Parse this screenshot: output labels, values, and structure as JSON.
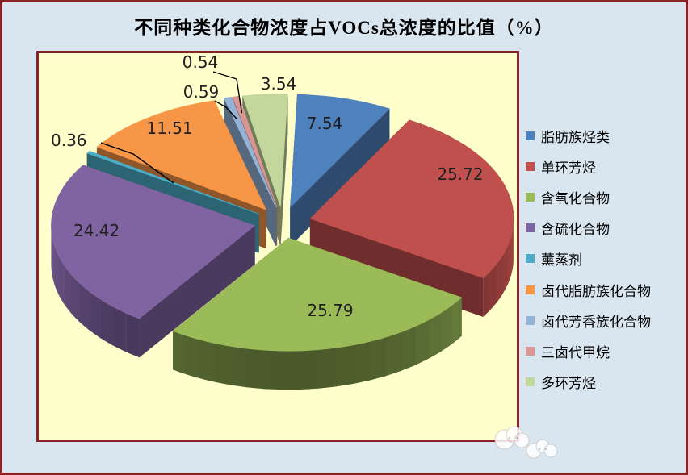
{
  "chart_data": {
    "type": "pie",
    "style": "3d-exploded",
    "title": "不同种类化合物浓度占VOCs总浓度的比值（%）",
    "unit": "%",
    "legend_position": "right",
    "grid": false,
    "categories": [
      "脂肪族烃类",
      "单环芳烃",
      "含氧化合物",
      "含硫化合物",
      "薰蒸剂",
      "卤代脂肪族化合物",
      "卤代芳香族化合物",
      "三卤代甲烷",
      "多环芳烃"
    ],
    "values": [
      7.54,
      25.72,
      25.79,
      24.42,
      0.36,
      11.51,
      0.59,
      0.54,
      3.54
    ],
    "slice_colors": [
      "#4F81BD",
      "#C0504D",
      "#9BBB59",
      "#8064A2",
      "#4BACC6",
      "#F79646",
      "#95B3D7",
      "#D99694",
      "#C3D69B"
    ],
    "data_labels_shown": true,
    "small_slice_labels_outside_with_leader": [
      "0.36",
      "0.59",
      "0.54"
    ]
  },
  "colors": {
    "canvas_background": "#d9e6f0",
    "plot_background": "#ffffcc",
    "frame_border": "#8b2027",
    "data_label_text": "#1f1f1f",
    "title_text": "#000000",
    "legend_text": "#000000"
  },
  "watermark": {
    "icon": "clouds"
  }
}
